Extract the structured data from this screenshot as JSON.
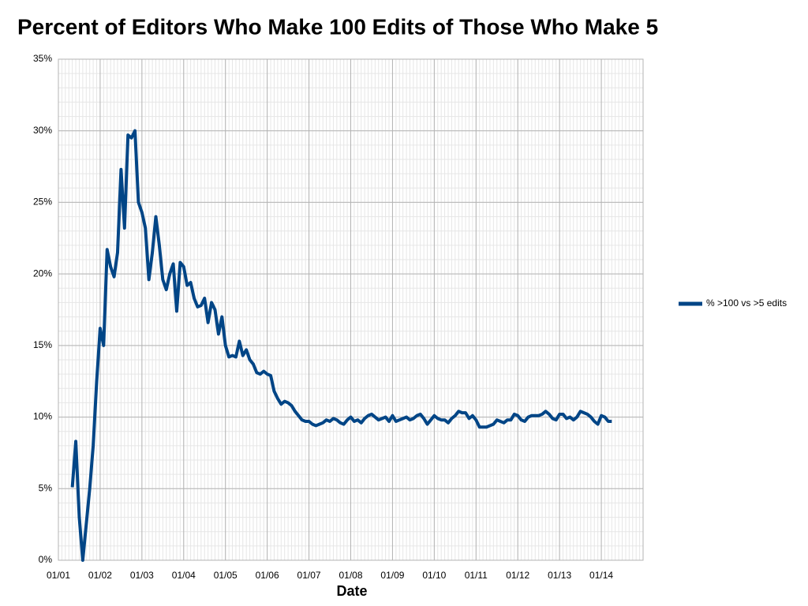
{
  "chart_data": {
    "type": "line",
    "title": "Percent of Editors Who Make 100 Edits of Those Who Make 5",
    "x_label": "Date",
    "x": [
      "05/01",
      "06/01",
      "07/01",
      "08/01",
      "09/01",
      "10/01",
      "11/01",
      "12/01",
      "01/02",
      "02/02",
      "03/02",
      "04/02",
      "05/02",
      "06/02",
      "07/02",
      "08/02",
      "09/02",
      "10/02",
      "11/02",
      "12/02",
      "01/03",
      "02/03",
      "03/03",
      "04/03",
      "05/03",
      "06/03",
      "07/03",
      "08/03",
      "09/03",
      "10/03",
      "11/03",
      "12/03",
      "01/04",
      "02/04",
      "03/04",
      "04/04",
      "05/04",
      "06/04",
      "07/04",
      "08/04",
      "09/04",
      "10/04",
      "11/04",
      "12/04",
      "01/05",
      "02/05",
      "03/05",
      "04/05",
      "05/05",
      "06/05",
      "07/05",
      "08/05",
      "09/05",
      "10/05",
      "11/05",
      "12/05",
      "01/06",
      "02/06",
      "03/06",
      "04/06",
      "05/06",
      "06/06",
      "07/06",
      "08/06",
      "09/06",
      "10/06",
      "11/06",
      "12/06",
      "01/07",
      "02/07",
      "03/07",
      "04/07",
      "05/07",
      "06/07",
      "07/07",
      "08/07",
      "09/07",
      "10/07",
      "11/07",
      "12/07",
      "01/08",
      "02/08",
      "03/08",
      "04/08",
      "05/08",
      "06/08",
      "07/08",
      "08/08",
      "09/08",
      "10/08",
      "11/08",
      "12/08",
      "01/09",
      "02/09",
      "03/09",
      "04/09",
      "05/09",
      "06/09",
      "07/09",
      "08/09",
      "09/09",
      "10/09",
      "11/09",
      "12/09",
      "01/10",
      "02/10",
      "03/10",
      "04/10",
      "05/10",
      "06/10",
      "07/10",
      "08/10",
      "09/10",
      "10/10",
      "11/10",
      "12/10",
      "01/11",
      "02/11",
      "03/11",
      "04/11",
      "05/11",
      "06/11",
      "07/11",
      "08/11",
      "09/11",
      "10/11",
      "11/11",
      "12/11",
      "01/12",
      "02/12",
      "03/12",
      "04/12",
      "05/12",
      "06/12",
      "07/12",
      "08/12",
      "09/12",
      "10/12",
      "11/12",
      "12/12",
      "01/13",
      "02/13",
      "03/13",
      "04/13",
      "05/13",
      "06/13",
      "07/13",
      "08/13",
      "09/13",
      "10/13",
      "11/13",
      "12/13",
      "01/14",
      "02/14",
      "03/14",
      "04/14"
    ],
    "series": [
      {
        "name": "% >100 vs >5 edits",
        "color": "#004586",
        "values": [
          5.1,
          8.3,
          3,
          0,
          2.5,
          5,
          8,
          12.5,
          16.2,
          15.0,
          21.7,
          20.5,
          19.8,
          21.5,
          27.3,
          23.2,
          29.7,
          29.5,
          30.0,
          25.0,
          24.3,
          23.2,
          19.6,
          21.5,
          24.0,
          22.0,
          19.6,
          18.9,
          20.0,
          20.7,
          17.4,
          20.8,
          20.5,
          19.2,
          19.4,
          18.3,
          17.7,
          17.8,
          18.3,
          16.6,
          18.0,
          17.5,
          15.8,
          17.0,
          15.0,
          14.2,
          14.3,
          14.2,
          15.3,
          14.3,
          14.7,
          14.0,
          13.7,
          13.1,
          13.0,
          13.2,
          13.0,
          12.9,
          11.8,
          11.3,
          10.9,
          11.1,
          11.0,
          10.8,
          10.4,
          10.1,
          9.8,
          9.7,
          9.7,
          9.5,
          9.4,
          9.5,
          9.6,
          9.8,
          9.7,
          9.9,
          9.8,
          9.6,
          9.5,
          9.8,
          10.0,
          9.7,
          9.8,
          9.6,
          9.9,
          10.1,
          10.2,
          10.0,
          9.8,
          9.9,
          10.0,
          9.7,
          10.1,
          9.7,
          9.8,
          9.9,
          10.0,
          9.8,
          9.9,
          10.1,
          10.2,
          9.9,
          9.5,
          9.8,
          10.1,
          9.9,
          9.8,
          9.8,
          9.6,
          9.9,
          10.1,
          10.4,
          10.3,
          10.3,
          9.9,
          10.1,
          9.8,
          9.3,
          9.3,
          9.3,
          9.4,
          9.5,
          9.8,
          9.7,
          9.6,
          9.8,
          9.8,
          10.2,
          10.1,
          9.8,
          9.7,
          10.0,
          10.1,
          10.1,
          10.1,
          10.2,
          10.4,
          10.2,
          9.9,
          9.8,
          10.2,
          10.2,
          9.9,
          10.0,
          9.8,
          10.0,
          10.4,
          10.3,
          10.2,
          10.0,
          9.7,
          9.5,
          10.1,
          10.0,
          9.7,
          9.7
        ]
      }
    ],
    "xlim": [
      "01/01",
      "01/15"
    ],
    "xticks": [
      "01/01",
      "01/02",
      "01/03",
      "01/04",
      "01/05",
      "01/06",
      "01/07",
      "01/08",
      "01/09",
      "01/10",
      "01/11",
      "01/12",
      "01/13",
      "01/14"
    ],
    "ylim": [
      0,
      35
    ],
    "yticks": [
      {
        "value": 0,
        "label": "0%"
      },
      {
        "value": 5,
        "label": "5%"
      },
      {
        "value": 10,
        "label": "10%"
      },
      {
        "value": 15,
        "label": "15%"
      },
      {
        "value": 20,
        "label": "20%"
      },
      {
        "value": 25,
        "label": "25%"
      },
      {
        "value": 30,
        "label": "30%"
      },
      {
        "value": 35,
        "label": "35%"
      }
    ],
    "grid": true,
    "legend": "right"
  }
}
